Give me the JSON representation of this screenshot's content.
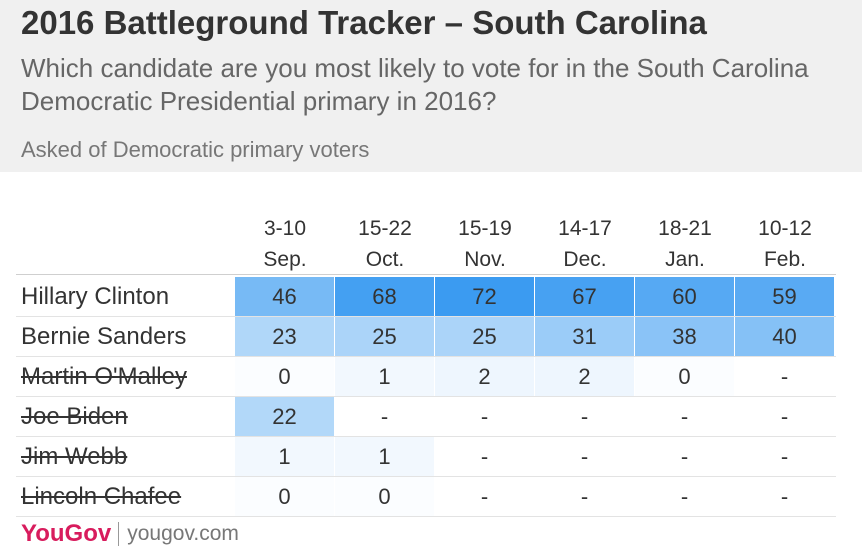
{
  "header": {
    "title": "2016 Battleground Tracker – South Carolina",
    "subtitle": "Which candidate are you most likely to vote for in the South Carolina Democratic Presidential primary in 2016?",
    "note": "Asked of Democratic primary voters"
  },
  "chart_data": {
    "type": "table",
    "title": "2016 Battleground Tracker – South Carolina",
    "columns": [
      {
        "days": "3-10",
        "month": "Sep."
      },
      {
        "days": "15-22",
        "month": "Oct."
      },
      {
        "days": "15-19",
        "month": "Nov."
      },
      {
        "days": "14-17",
        "month": "Dec."
      },
      {
        "days": "18-21",
        "month": "Jan."
      },
      {
        "days": "10-12",
        "month": "Feb."
      }
    ],
    "rows": [
      {
        "name": "Hillary Clinton",
        "withdrawn": false,
        "values": [
          "46",
          "68",
          "72",
          "67",
          "60",
          "59"
        ]
      },
      {
        "name": "Bernie Sanders",
        "withdrawn": false,
        "values": [
          "23",
          "25",
          "25",
          "31",
          "38",
          "40"
        ]
      },
      {
        "name": "Martin O'Malley",
        "withdrawn": true,
        "values": [
          "0",
          "1",
          "2",
          "2",
          "0",
          "-"
        ]
      },
      {
        "name": "Joe Biden",
        "withdrawn": true,
        "values": [
          "22",
          "-",
          "-",
          "-",
          "-",
          "-"
        ]
      },
      {
        "name": "Jim Webb",
        "withdrawn": true,
        "values": [
          "1",
          "1",
          "-",
          "-",
          "-",
          "-"
        ]
      },
      {
        "name": "Lincoln Chafee",
        "withdrawn": true,
        "values": [
          "0",
          "0",
          "-",
          "-",
          "-",
          "-"
        ]
      }
    ],
    "colors": {
      "high": "#2f95f0",
      "low": "#ffffff",
      "empty": "#ffffff"
    }
  },
  "footer": {
    "brand": "YouGov",
    "site": "yougov.com"
  }
}
